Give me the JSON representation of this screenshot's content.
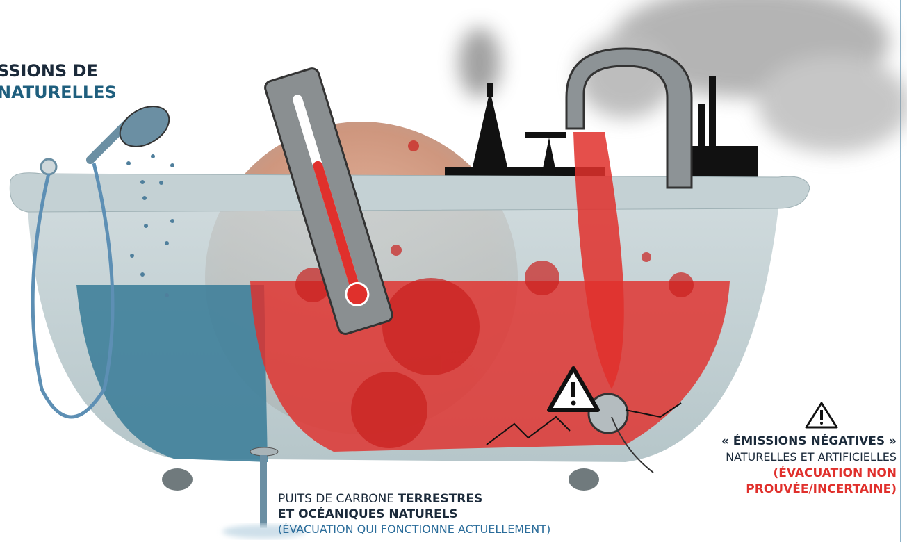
{
  "labels": {
    "top_left": {
      "line1": "SSIONS DE",
      "line2": "NATURELLES"
    },
    "carbon_sinks": {
      "intro": "PUITS DE CARBONE",
      "emphasis_1": "TERRESTRES",
      "emphasis_2": "ET OCÉANIQUES NATURELS",
      "note": "(ÉVACUATION QUI FONCTIONNE ACTUELLEMENT)"
    },
    "negative_emissions": {
      "title": "« ÉMISSIONS NÉGATIVES »",
      "subtitle": "NATURELLES ET ARTIFICIELLES",
      "note_1": "(ÉVACUATION NON",
      "note_2": "PROUVÉE/INCERTAINE)"
    }
  }
}
